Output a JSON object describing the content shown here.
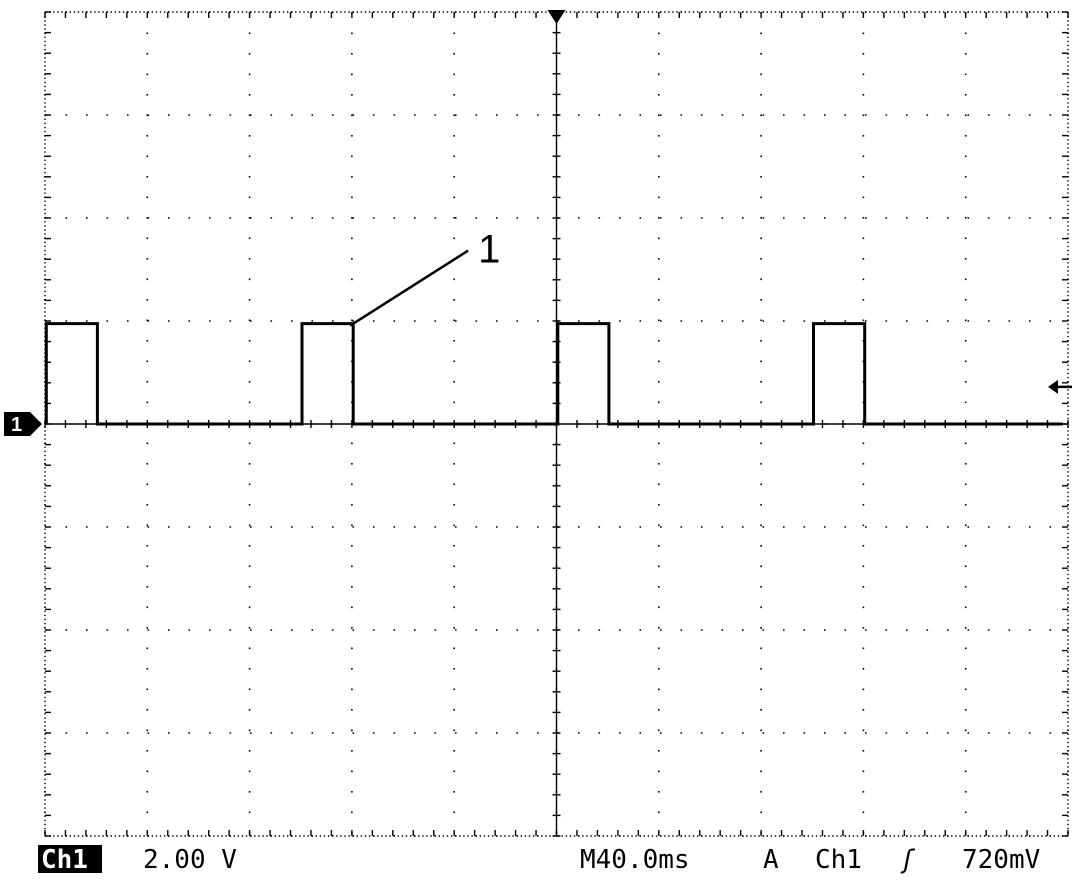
{
  "chart_data": {
    "type": "line",
    "instrument": "oscilloscope",
    "grid": true,
    "divisions": {
      "x": 10,
      "y": 8
    },
    "x": [
      0.5,
      0.5,
      20.5,
      20.5,
      100.5,
      100.5,
      120.5,
      120.5,
      200.5,
      200.5,
      220.5,
      220.5,
      300.5,
      300.5,
      320.5,
      320.5,
      398
    ],
    "y": [
      0,
      1.95,
      1.95,
      0,
      0,
      1.95,
      1.95,
      0,
      0,
      1.95,
      1.95,
      0,
      0,
      1.95,
      1.95,
      0,
      0
    ],
    "xlim": [
      0,
      400
    ],
    "ylim": [
      -8,
      8
    ],
    "x_unit": "ms",
    "y_unit": "V",
    "annotation": {
      "text": "1",
      "target_x": 120.5,
      "target_y": 1.95
    },
    "trigger": {
      "level": 0.72,
      "position": 200
    }
  },
  "status": {
    "channel": "Ch1",
    "volts_per_div": "2.00 V",
    "timebase": "M40.0ms",
    "trigger_mode": "A",
    "trigger_source": "Ch1",
    "trigger_slope": "ʃ",
    "trigger_level": "720mV"
  },
  "markers": {
    "channel_marker": "1"
  },
  "colors": {
    "trace": "#000000",
    "grid": "#000000",
    "background": "#ffffff"
  }
}
